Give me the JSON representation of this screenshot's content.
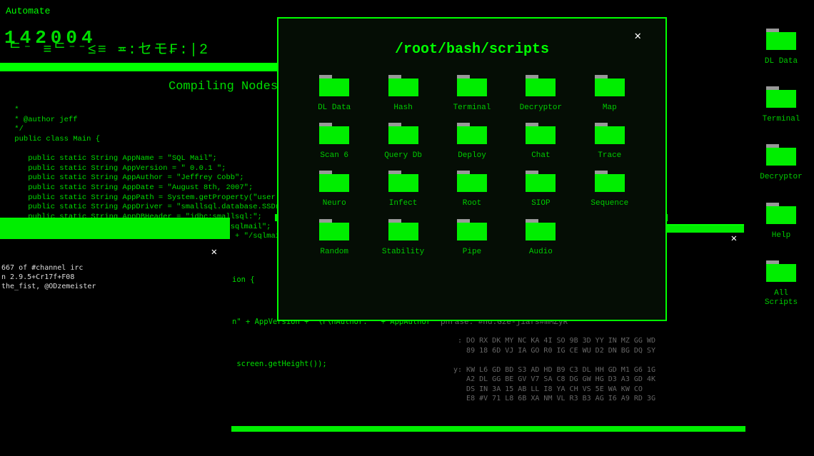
{
  "colors": {
    "bg": "#000000",
    "green": "#00ff00",
    "greenDim": "#00dd00",
    "greyText": "#666666"
  },
  "topLabel": "Automate",
  "counter": "142004",
  "glyphline": "ᄃ⁻  ≡ᄃ⁻⁻≤≡  ≖:セモ₣:|2",
  "compiling": "Compiling Nodes",
  "code": " *\n * @author jeff\n */\n public class Main {\n\n    public static String AppName = \"SQL Mail\";\n    public static String AppVersion = \" 0.0.1 \";\n    public static String AppAuthor = \"Jeffrey Cobb\";\n    public static String AppDate = \"August 8th, 2007\";\n    public static String AppPath = System.getProperty(\"user.dir\");\n    public static String AppDriver = \"smallsql.database.SSDriver\";\n    public static String AppDBHeader = \"jdbc:smallsql:\";\n    public static String AppDBPath = AppPath + \"/sqlmail\";\n    public static String AppPreferences = AppPath + \"/sqlmail_prefs\"",
  "irc": {
    "lines": "667 of #channel irc\nn 2.9.5+Cr17f+F08\nthe_fist, @ODzemeister"
  },
  "code2": "ion {\n\n\n\nn\" + AppVersion + \"\\r\\nAuthor: \" + AppAuthor + \"\n\n\n\n screen.getHeight());",
  "hex": {
    "phrase": "phrase: #nd.Gze-j1afs#mMZyR",
    "dump": " : DO RX DK MY NC KA 4I SO 9B 3D YY IN MZ GG WD\n   89 18 6D VJ IA GO R0 IG CE WU D2 DN BG DQ SY\n\ny: KW L6 GD BD S3 AD HD B9 C3 DL HH GD M1 G6 1G\n   A2 DL GG BE GV V7 SA C8 DG GW HG D3 A3 GD 4K\n   DS IN 3A 15 AB LL I8 YA CH VS 5E WA KW CO\n   E8 #V 71 L8 6B XA NM VL R3 B3 AG I6 A9 RD 3G"
  },
  "dialog": {
    "title": "/root/bash/scripts",
    "folders": [
      {
        "label": "DL Data"
      },
      {
        "label": "Hash"
      },
      {
        "label": "Terminal"
      },
      {
        "label": "Decryptor"
      },
      {
        "label": "Map"
      },
      {
        "label": "Scan 6"
      },
      {
        "label": "Query Db"
      },
      {
        "label": "Deploy"
      },
      {
        "label": "Chat"
      },
      {
        "label": "Trace"
      },
      {
        "label": "Neuro"
      },
      {
        "label": "Infect"
      },
      {
        "label": "Root"
      },
      {
        "label": "SIOP"
      },
      {
        "label": "Sequence"
      },
      {
        "label": "Random"
      },
      {
        "label": "Stability"
      },
      {
        "label": "Pipe"
      },
      {
        "label": "Audio"
      }
    ]
  },
  "desktop": [
    {
      "label": "DL Data"
    },
    {
      "label": "Terminal"
    },
    {
      "label": "Decryptor"
    },
    {
      "label": "Help"
    },
    {
      "label": "All Scripts"
    }
  ],
  "closeGlyph": "✕"
}
